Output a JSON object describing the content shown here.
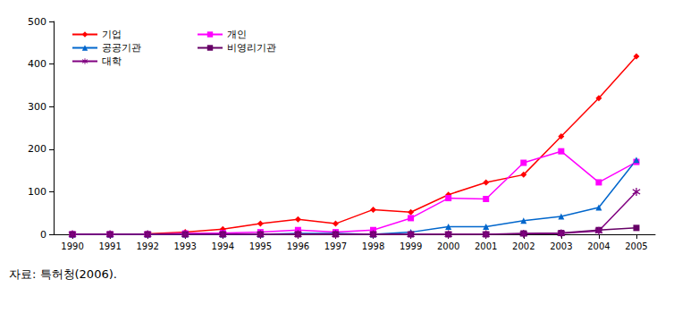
{
  "chart_data": {
    "type": "line",
    "annotation": "자료: 특허청(2006).",
    "categories": [
      "1990",
      "1991",
      "1992",
      "1993",
      "1994",
      "1995",
      "1996",
      "1997",
      "1998",
      "1999",
      "2000",
      "2001",
      "2002",
      "2003",
      "2004",
      "2005"
    ],
    "series": [
      {
        "name": "기업",
        "color": "#ff0000",
        "marker": "diamond",
        "values": [
          0,
          0,
          1,
          5,
          12,
          25,
          35,
          25,
          58,
          52,
          93,
          122,
          140,
          230,
          320,
          418
        ]
      },
      {
        "name": "개인",
        "color": "#ff00ff",
        "marker": "square",
        "values": [
          0,
          0,
          0,
          2,
          3,
          5,
          10,
          5,
          10,
          38,
          85,
          83,
          168,
          195,
          122,
          170
        ]
      },
      {
        "name": "공공기관",
        "color": "#0066cc",
        "marker": "triangle",
        "values": [
          0,
          0,
          0,
          0,
          0,
          0,
          2,
          2,
          0,
          5,
          18,
          18,
          32,
          42,
          63,
          175
        ]
      },
      {
        "name": "비영리기관",
        "color": "#660066",
        "marker": "square",
        "values": [
          0,
          0,
          0,
          0,
          0,
          0,
          0,
          0,
          0,
          0,
          0,
          0,
          2,
          3,
          10,
          15
        ]
      },
      {
        "name": "대학",
        "color": "#800080",
        "marker": "asterisk",
        "values": [
          0,
          0,
          0,
          0,
          0,
          0,
          0,
          0,
          0,
          0,
          0,
          0,
          1,
          2,
          8,
          100
        ]
      }
    ],
    "ylim": [
      0,
      500
    ],
    "yticks": [
      0,
      100,
      200,
      300,
      400,
      500
    ],
    "grid": false,
    "legend": "upper left"
  }
}
